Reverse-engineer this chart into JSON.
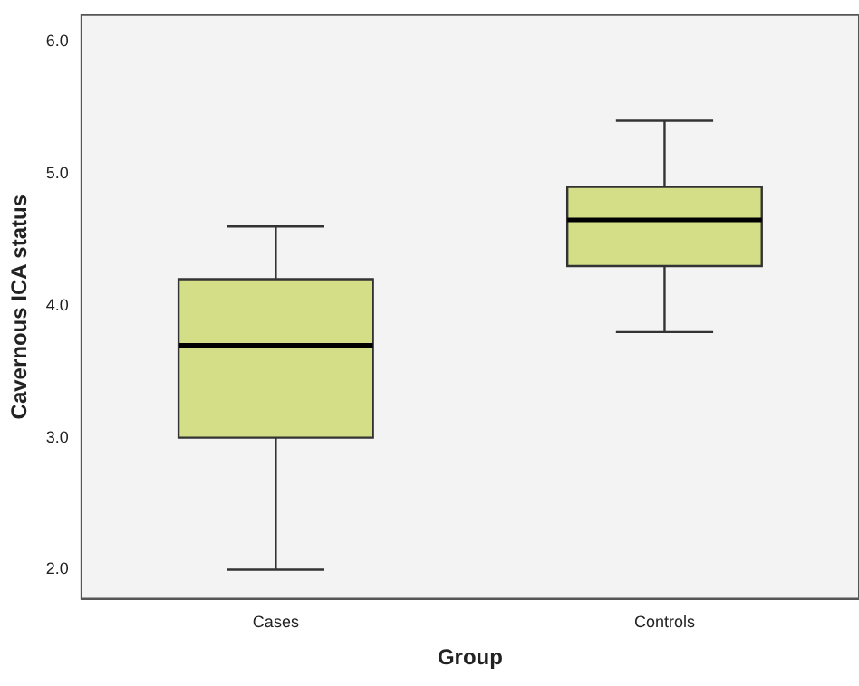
{
  "chart_data": {
    "type": "box",
    "xlabel": "Group",
    "ylabel": "Cavernous ICA status",
    "categories": [
      "Cases",
      "Controls"
    ],
    "color": "#d4de86",
    "ylim": [
      1.78,
      6.2
    ],
    "yticks": [
      {
        "value": 2,
        "label": "2.0"
      },
      {
        "value": 3,
        "label": "3.0"
      },
      {
        "value": 4,
        "label": "4.0"
      },
      {
        "value": 5,
        "label": "5.0"
      },
      {
        "value": 6,
        "label": "6.0"
      }
    ],
    "grid": false,
    "legend": false,
    "boxes": [
      {
        "low": 2.0,
        "q1": 3.0,
        "median": 3.7,
        "q3": 4.2,
        "high": 4.6
      },
      {
        "low": 3.8,
        "q1": 4.3,
        "median": 4.65,
        "q3": 4.9,
        "high": 5.4
      }
    ]
  }
}
